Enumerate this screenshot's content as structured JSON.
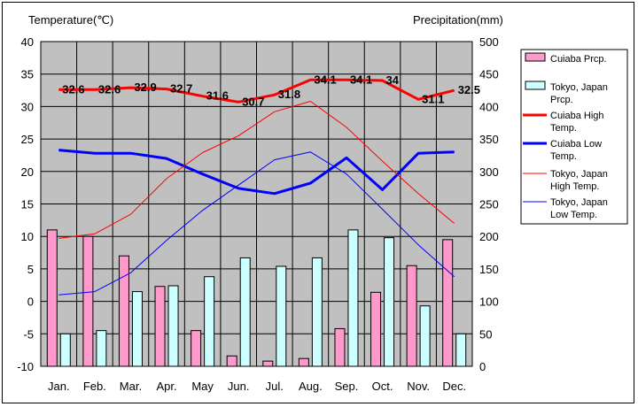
{
  "chart_data": {
    "type": "bar",
    "categories": [
      "Jan.",
      "Feb.",
      "Mar.",
      "Apr.",
      "May",
      "Jun.",
      "Jul.",
      "Aug.",
      "Sep.",
      "Oct.",
      "Nov.",
      "Dec."
    ],
    "left_axis": {
      "label": "Temperature(℃)",
      "range": [
        -10,
        40
      ],
      "ticks": [
        -10,
        -5,
        0,
        5,
        10,
        15,
        20,
        25,
        30,
        35,
        40
      ]
    },
    "right_axis": {
      "label": "Precipitation(mm)",
      "range": [
        0,
        500
      ],
      "ticks": [
        0,
        50,
        100,
        150,
        200,
        250,
        300,
        350,
        400,
        450,
        500
      ]
    },
    "grid": true,
    "legend_position": "right",
    "series": [
      {
        "name": "Cuiaba Prcp.",
        "kind": "bar",
        "axis": "right",
        "color": "#ff99cc",
        "values": [
          210,
          200,
          170,
          123,
          55,
          16,
          8,
          12,
          58,
          114,
          155,
          195
        ]
      },
      {
        "name": "Tokyo, Japan Prcp.",
        "kind": "bar",
        "axis": "right",
        "color": "#ccffff",
        "values": [
          50,
          55,
          115,
          124,
          138,
          167,
          154,
          167,
          210,
          198,
          93,
          50
        ]
      },
      {
        "name": "Cuiaba High Temp.",
        "kind": "line",
        "axis": "left",
        "color": "#ff0000",
        "width": 3,
        "values": [
          32.6,
          32.6,
          32.9,
          32.7,
          31.6,
          30.7,
          31.8,
          34.1,
          34.1,
          34.0,
          31.1,
          32.5
        ],
        "labels": [
          "32.6",
          "32.6",
          "32.9",
          "32.7",
          "31.6",
          "30.7",
          "31.8",
          "34.1",
          "34.1",
          "34",
          "31.1",
          "32.5"
        ]
      },
      {
        "name": "Cuiaba Low Temp.",
        "kind": "line",
        "axis": "left",
        "color": "#0000ff",
        "width": 3,
        "values": [
          23.3,
          22.8,
          22.8,
          22.0,
          19.6,
          17.4,
          16.6,
          18.2,
          22.1,
          17.2,
          22.8,
          23.0
        ]
      },
      {
        "name": "Tokyo, Japan High Temp.",
        "kind": "line",
        "axis": "left",
        "color": "#ff0000",
        "width": 1,
        "values": [
          9.7,
          10.4,
          13.4,
          18.9,
          22.9,
          25.5,
          29.2,
          30.8,
          26.8,
          21.6,
          16.6,
          12.0
        ]
      },
      {
        "name": "Tokyo, Japan Low Temp.",
        "kind": "line",
        "axis": "left",
        "color": "#0000ff",
        "width": 1,
        "values": [
          1.0,
          1.5,
          4.4,
          9.4,
          14.0,
          17.9,
          21.8,
          23.0,
          19.6,
          14.2,
          8.7,
          3.8
        ]
      }
    ]
  }
}
